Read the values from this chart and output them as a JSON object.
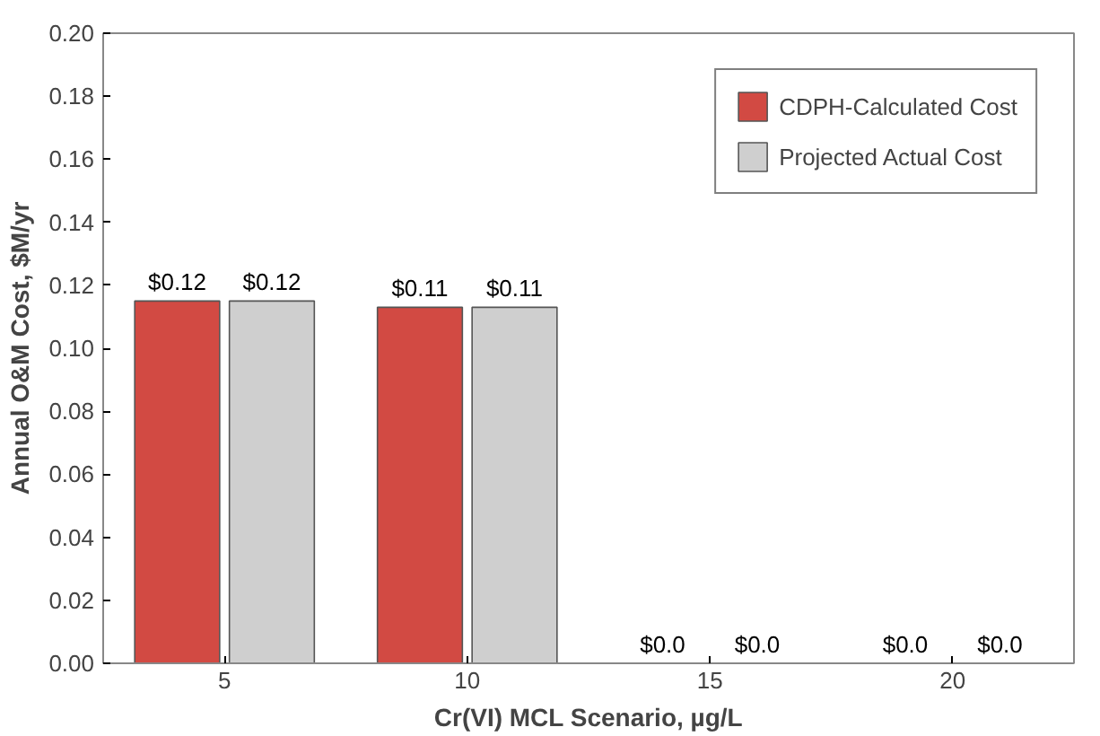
{
  "chart_data": {
    "type": "bar",
    "xlabel": "Cr(VI) MCL Scenario, µg/L",
    "ylabel": "Annual O&M Cost, $M/yr",
    "categories": [
      "5",
      "10",
      "15",
      "20"
    ],
    "series": [
      {
        "name": "CDPH-Calculated Cost",
        "color": "#d24a43",
        "values": [
          0.115,
          0.113,
          0,
          0
        ],
        "value_labels": [
          "$0.12",
          "$0.11",
          "$0.0",
          "$0.0"
        ]
      },
      {
        "name": "Projected Actual Cost",
        "color": "#cfcfcf",
        "values": [
          0.115,
          0.113,
          0,
          0
        ],
        "value_labels": [
          "$0.12",
          "$0.11",
          "$0.0",
          "$0.0"
        ]
      }
    ],
    "ylim": [
      0,
      0.2
    ],
    "yticks": [
      {
        "value": 0,
        "label": "0.00"
      },
      {
        "value": 0.02,
        "label": "0.02"
      },
      {
        "value": 0.04,
        "label": "0.04"
      },
      {
        "value": 0.06,
        "label": "0.06"
      },
      {
        "value": 0.08,
        "label": "0.08"
      },
      {
        "value": 0.1,
        "label": "0.10"
      },
      {
        "value": 0.12,
        "label": "0.12"
      },
      {
        "value": 0.14,
        "label": "0.14"
      },
      {
        "value": 0.16,
        "label": "0.16"
      },
      {
        "value": 0.18,
        "label": "0.18"
      },
      {
        "value": 0.2,
        "label": "0.20"
      }
    ],
    "grid": false,
    "legend": "top right"
  }
}
